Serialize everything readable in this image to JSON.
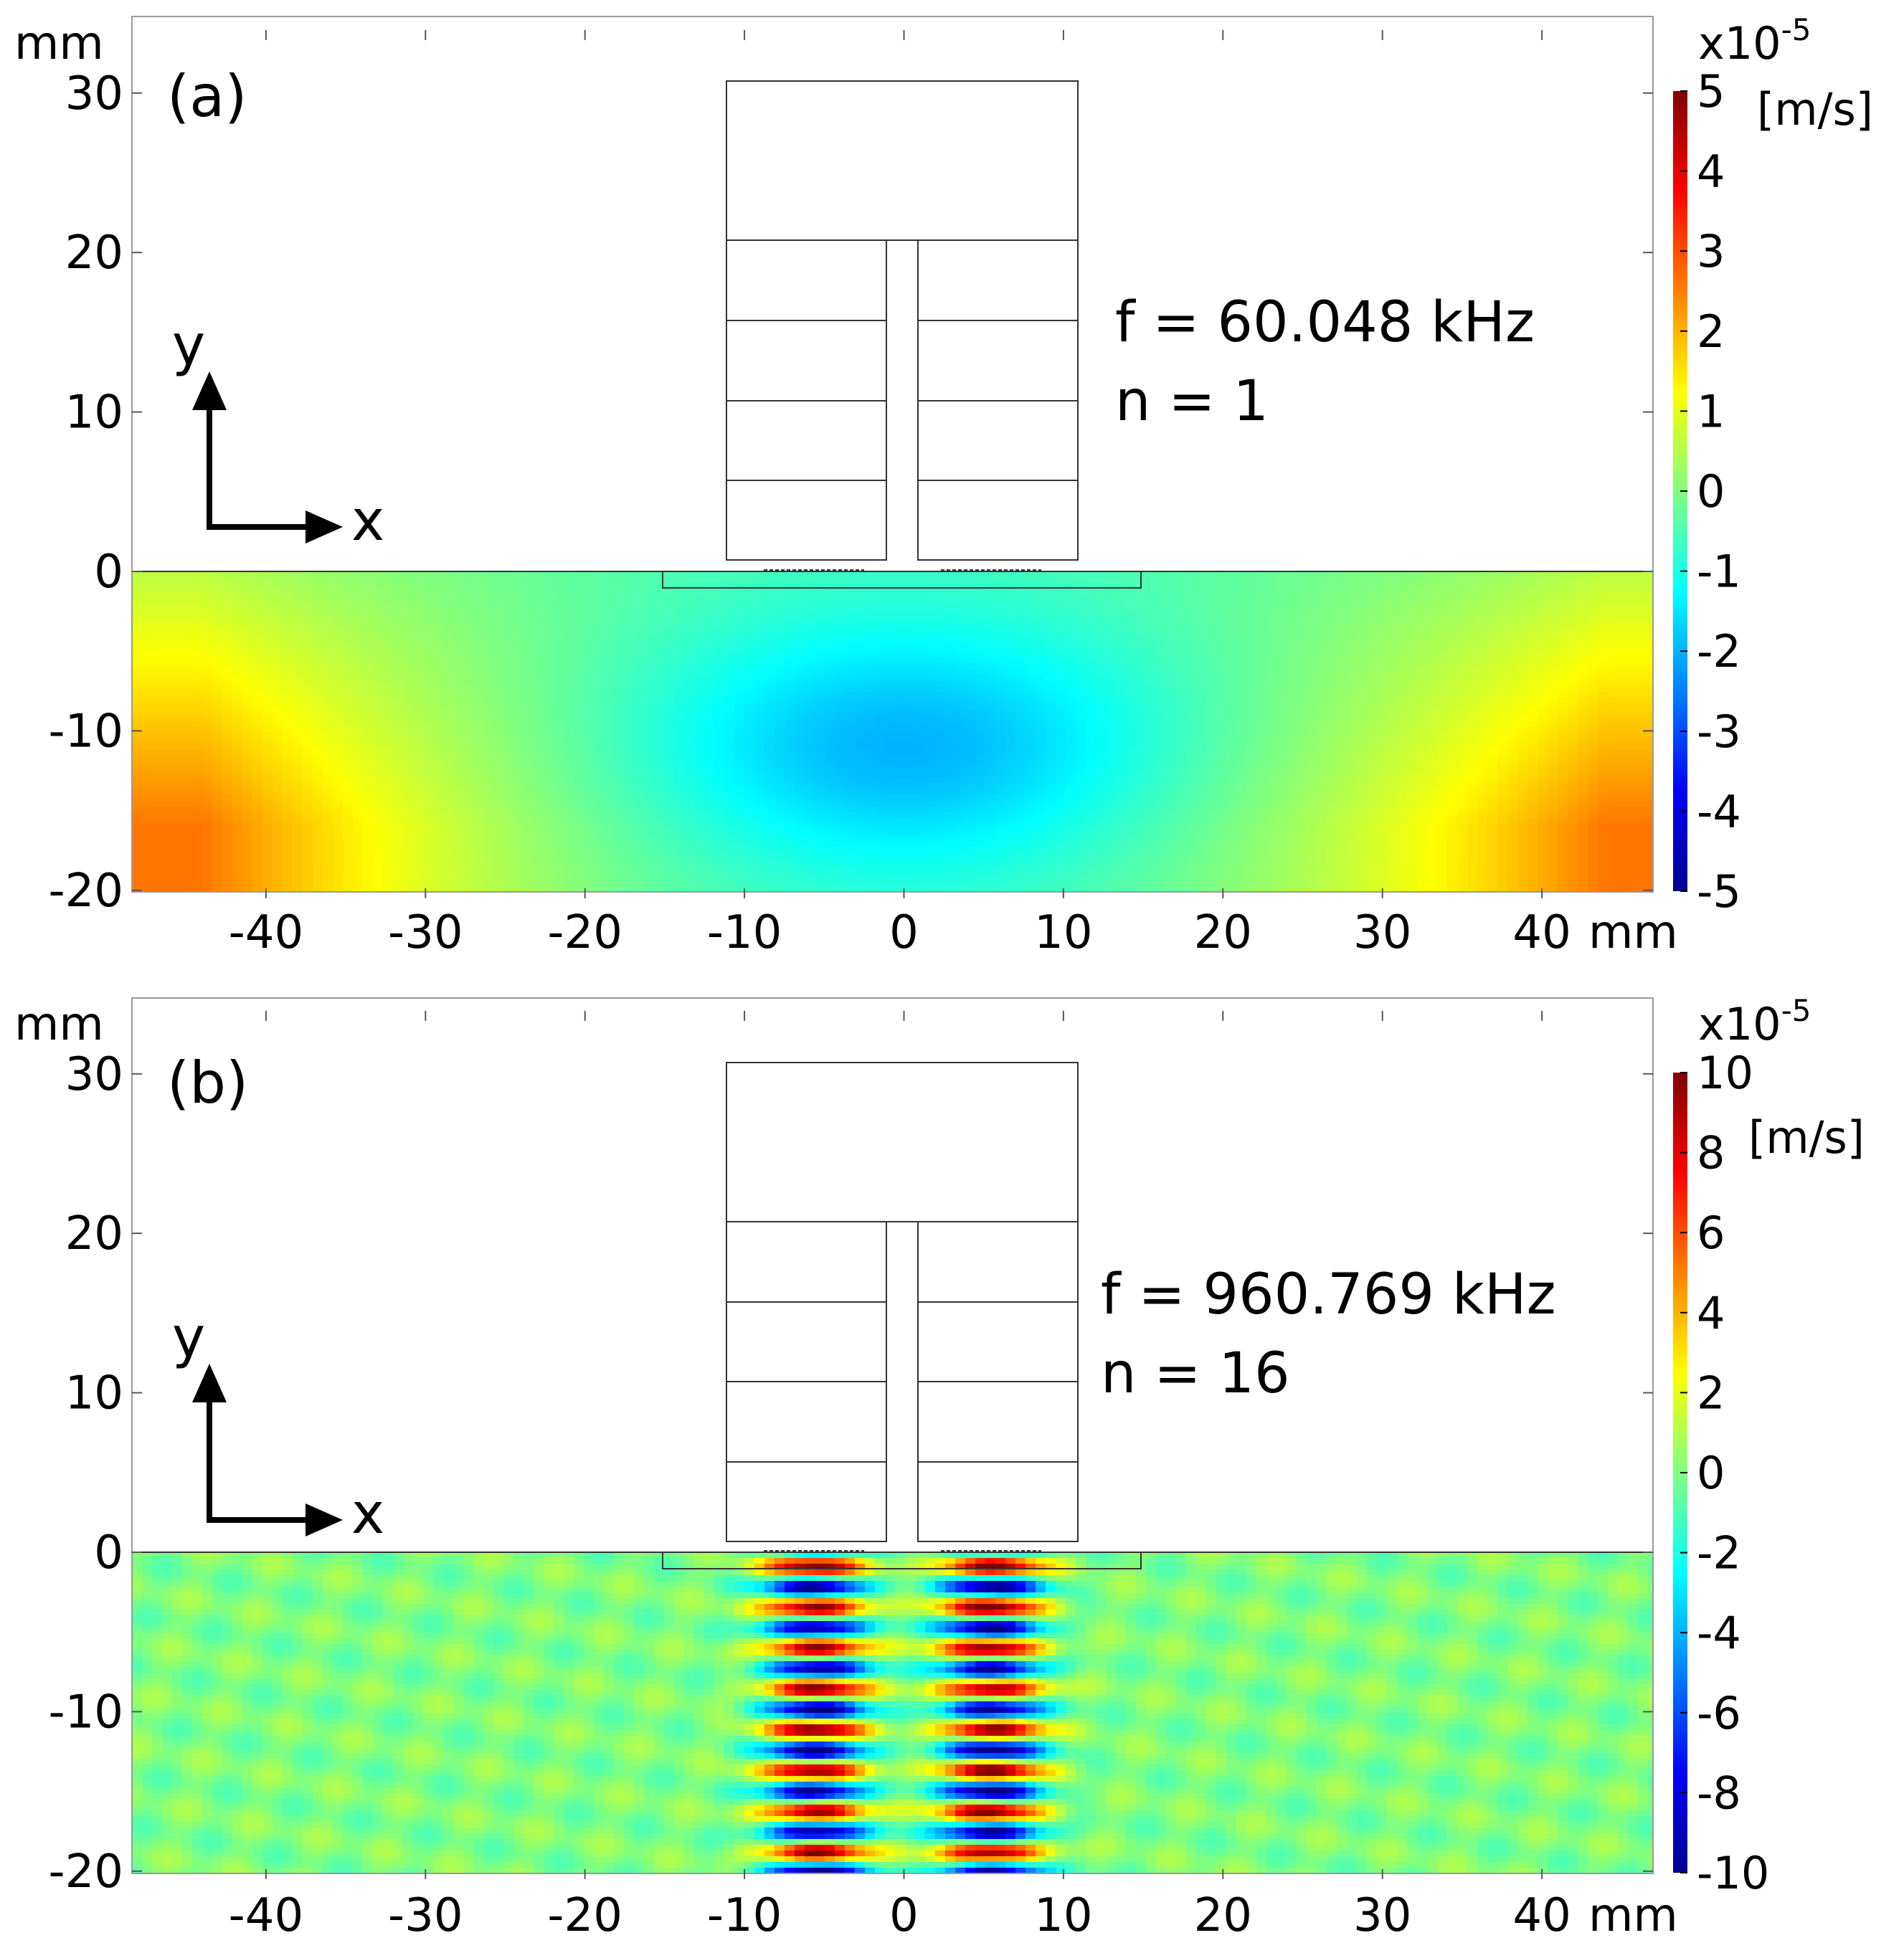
{
  "chart_data": [
    {
      "type": "heatmap",
      "panel_label": "(a)",
      "quantity_unit": "[m/s]",
      "colorbar_multiplier": "x10",
      "colorbar_exponent": "-5",
      "colorbar_range": [
        -5,
        5
      ],
      "colorbar_ticks": [
        "5",
        "4",
        "3",
        "2",
        "1",
        "0",
        "-1",
        "-2",
        "-3",
        "-4",
        "-5"
      ],
      "x_unit": "mm",
      "y_unit": "mm",
      "xlim": [
        -48,
        47
      ],
      "ylim": [
        -20.5,
        34
      ],
      "x_ticks": [
        "-40",
        "-30",
        "-20",
        "-10",
        "0",
        "10",
        "20",
        "30",
        "40"
      ],
      "y_ticks": [
        "30",
        "20",
        "10",
        "0",
        "-10",
        "-20"
      ],
      "annotation_frequency": "f = 60.048 kHz",
      "annotation_mode": "n = 1",
      "axis_x_letter": "x",
      "axis_y_letter": "y",
      "field_pattern": "fundamental mode: negative lobe centred near (0, -11) mm; positive values toward lower corners",
      "field_points": [
        {
          "x": 0,
          "y": -11,
          "v": -1.9
        },
        {
          "x": -44,
          "y": -17,
          "v": 2.8
        },
        {
          "x": 44,
          "y": -17,
          "v": 2.8
        },
        {
          "x": -40,
          "y": -5,
          "v": 1.2
        },
        {
          "x": 40,
          "y": -5,
          "v": 1.2
        },
        {
          "x": 0,
          "y": -1,
          "v": -0.6
        }
      ]
    },
    {
      "type": "heatmap",
      "panel_label": "(b)",
      "quantity_unit": "[m/s]",
      "colorbar_multiplier": "x10",
      "colorbar_exponent": "-5",
      "colorbar_range": [
        -10,
        10
      ],
      "colorbar_ticks": [
        "10",
        "8",
        "6",
        "4",
        "2",
        "0",
        "-2",
        "-4",
        "-6",
        "-8",
        "-10"
      ],
      "x_unit": "mm",
      "y_unit": "mm",
      "xlim": [
        -48,
        47
      ],
      "ylim": [
        -20.5,
        34
      ],
      "x_ticks": [
        "-40",
        "-30",
        "-20",
        "-10",
        "0",
        "10",
        "20",
        "30",
        "40"
      ],
      "y_ticks": [
        "30",
        "20",
        "10",
        "0",
        "-10",
        "-20"
      ],
      "annotation_frequency": "f = 960.769 kHz",
      "annotation_mode": "n = 16",
      "axis_x_letter": "x",
      "axis_y_letter": "y",
      "field_pattern": "16th thickness mode: alternating +/- bands beneath the two transducer stacks centred at x = -5.5 mm and x = 5.5 mm",
      "beam_centres_mm": [
        -5.5,
        5.5
      ],
      "amplitude_max": 10,
      "band_count": 16
    }
  ]
}
